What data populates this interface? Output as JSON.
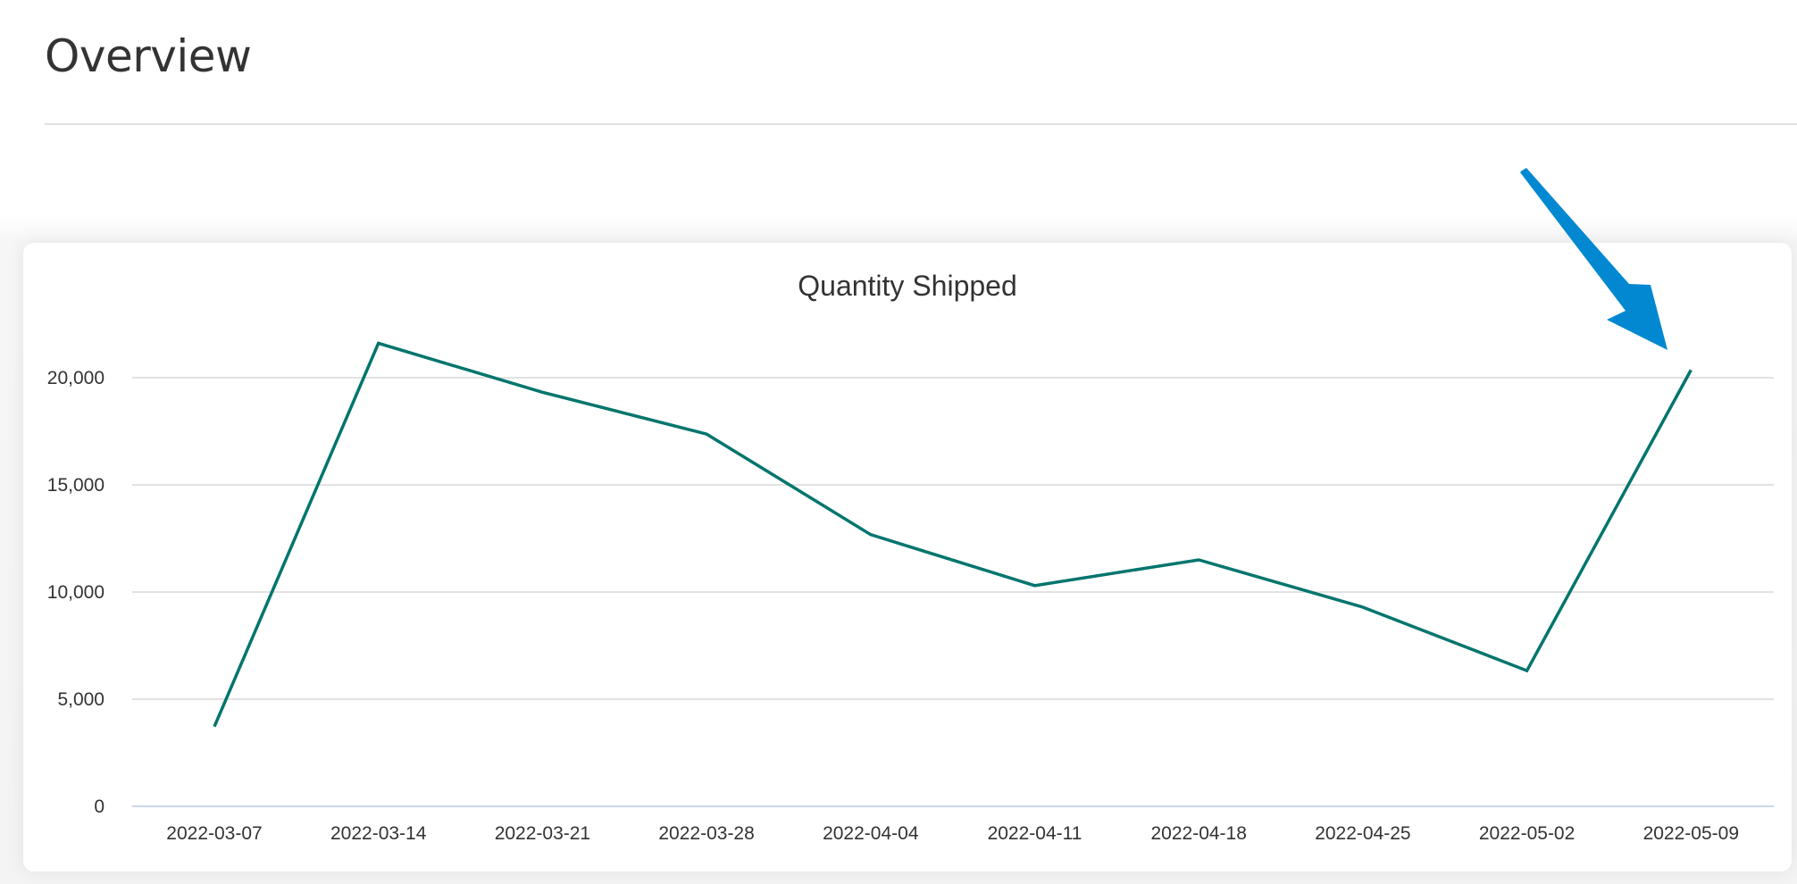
{
  "page": {
    "title": "Overview"
  },
  "chart_card": {
    "title": "Quantity Shipped"
  },
  "colors": {
    "line": "#00756d",
    "arrow": "#0288d1",
    "gridline": "#e2e2e2",
    "baseline": "#c9d6ea",
    "text": "#333333"
  },
  "annotation": {
    "type": "arrow",
    "points_to": "2022-05-09"
  },
  "chart_data": {
    "type": "line",
    "title": "Quantity Shipped",
    "xlabel": "",
    "ylabel": "",
    "categories": [
      "2022-03-07",
      "2022-03-14",
      "2022-03-21",
      "2022-03-28",
      "2022-04-04",
      "2022-04-11",
      "2022-04-18",
      "2022-04-25",
      "2022-05-02",
      "2022-05-09"
    ],
    "series": [
      {
        "name": "Quantity Shipped",
        "values": [
          3720,
          21610,
          19320,
          17370,
          12680,
          10300,
          11500,
          9290,
          6330,
          20360
        ]
      }
    ],
    "y_ticks": [
      "0",
      "5,000",
      "10,000",
      "15,000",
      "20,000"
    ],
    "y_tick_values": [
      0,
      5000,
      10000,
      15000,
      20000
    ],
    "ylim": [
      0,
      23000
    ],
    "grid": true,
    "legend": "none"
  }
}
